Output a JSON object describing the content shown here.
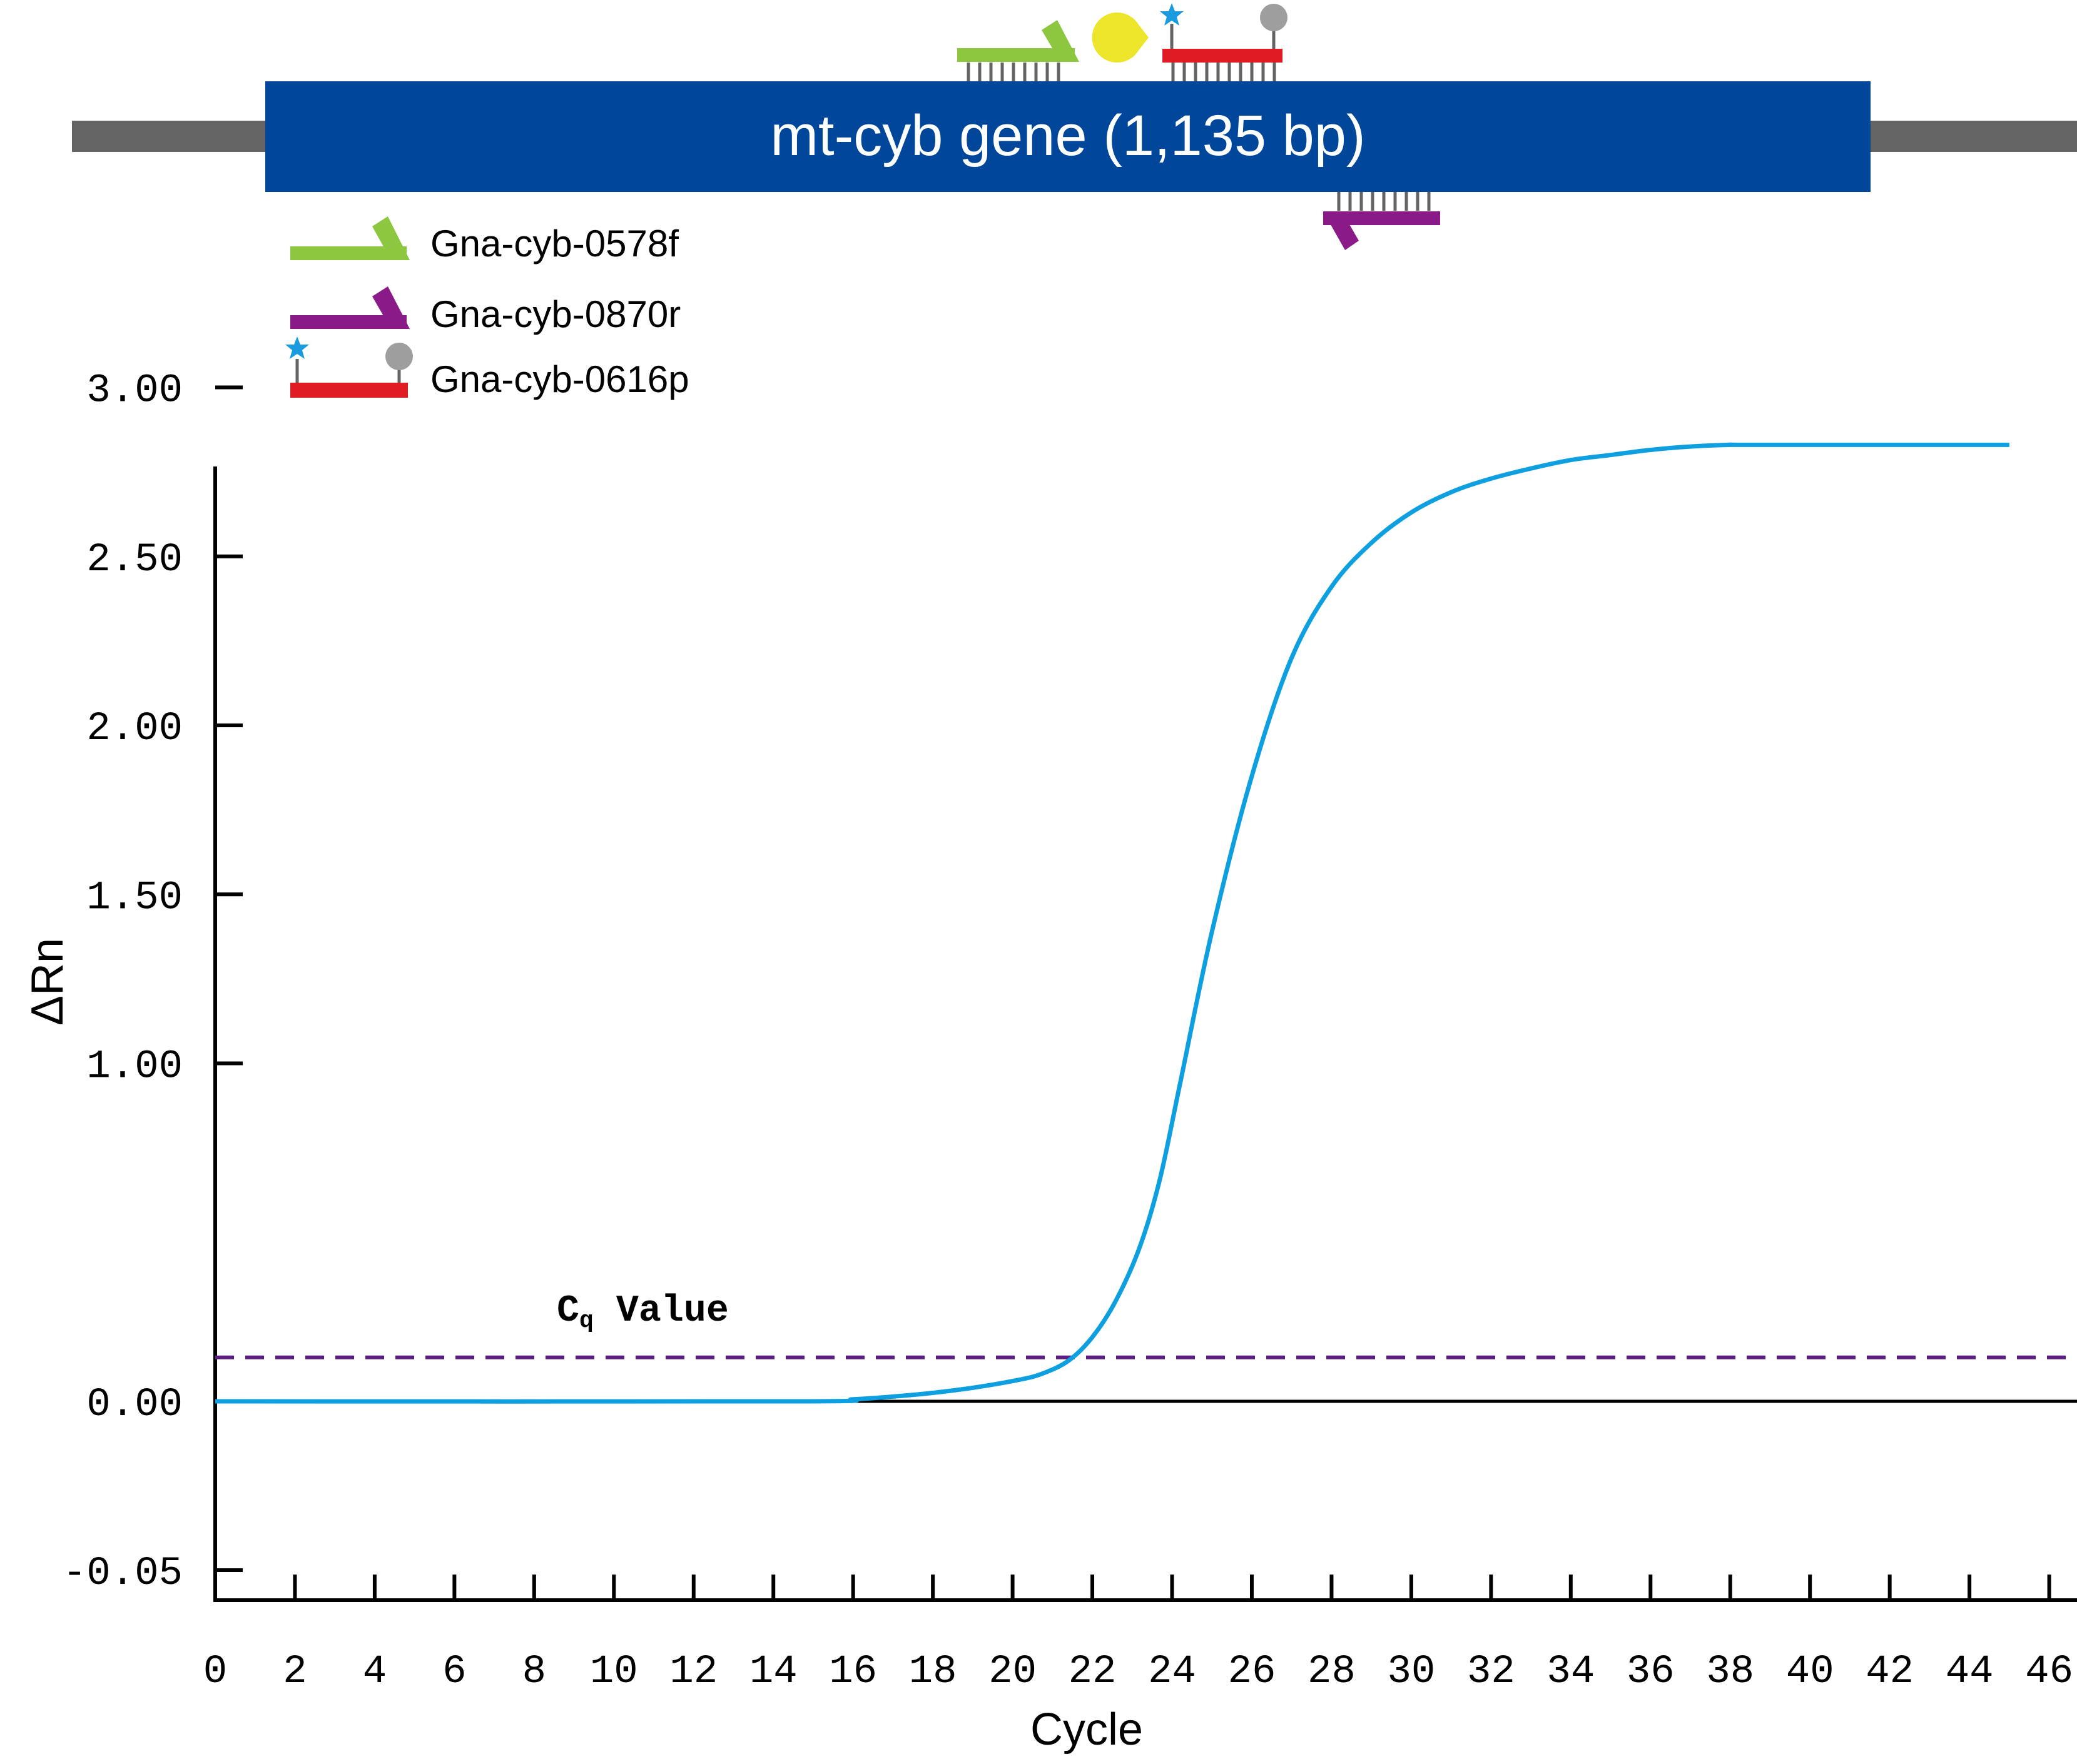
{
  "gene_diagram": {
    "gene_label": "mt-cyb gene (1,135 bp)",
    "legend": [
      {
        "label": "Gna-cyb-0578f",
        "kind": "forward-primer",
        "color": "#8dc63f"
      },
      {
        "label": "Gna-cyb-0870r",
        "kind": "reverse-primer",
        "color": "#8b1a89"
      },
      {
        "label": "Gna-cyb-0616p",
        "kind": "probe",
        "color": "#e01b24"
      }
    ],
    "colors": {
      "gene": "#00469b",
      "flank": "#646464",
      "polymerase": "#ede52a",
      "reporter": "#1a9be0",
      "quencher": "#9e9e9e"
    }
  },
  "chart_data": {
    "type": "line",
    "xlabel": "Cycle",
    "ylabel": "ΔRn",
    "xlim": [
      0,
      46.6
    ],
    "ylim": [
      -0.05,
      3.25
    ],
    "x_ticks": [
      "0",
      "2",
      "4",
      "6",
      "8",
      "10",
      "12",
      "14",
      "16",
      "18",
      "20",
      "22",
      "24",
      "26",
      "28",
      "30",
      "32",
      "34",
      "36",
      "38",
      "40",
      "42",
      "44",
      "46"
    ],
    "y_ticks": [
      {
        "value": -0.05,
        "label": "-0.05"
      },
      {
        "value": 0.0,
        "label": "0.00"
      },
      {
        "value": 1.0,
        "label": "1.00"
      },
      {
        "value": 1.5,
        "label": "1.50"
      },
      {
        "value": 2.0,
        "label": "2.00"
      },
      {
        "value": 2.5,
        "label": "2.50"
      },
      {
        "value": 3.0,
        "label": "3.00"
      }
    ],
    "threshold": {
      "label_main": "C",
      "label_sub": "q",
      "label_rest": " Value",
      "value": 0.13,
      "color": "#5b1f82"
    },
    "series": [
      {
        "color": "#0d9fe0",
        "x": [
          0,
          14.5,
          16,
          17,
          18,
          19,
          20,
          20.7,
          21.4,
          22,
          22.6,
          23.2,
          23.7,
          24.2,
          25,
          26,
          27,
          28,
          29,
          30,
          31,
          32,
          33,
          34,
          35,
          36,
          37,
          38,
          38.6,
          45
        ],
        "y": [
          0.0,
          0.0,
          0.006,
          0.014,
          0.025,
          0.04,
          0.06,
          0.08,
          0.12,
          0.19,
          0.3,
          0.46,
          0.66,
          0.94,
          1.39,
          1.85,
          2.2,
          2.41,
          2.54,
          2.63,
          2.69,
          2.73,
          2.76,
          2.785,
          2.8,
          2.815,
          2.825,
          2.83,
          2.83,
          2.83
        ]
      }
    ]
  }
}
